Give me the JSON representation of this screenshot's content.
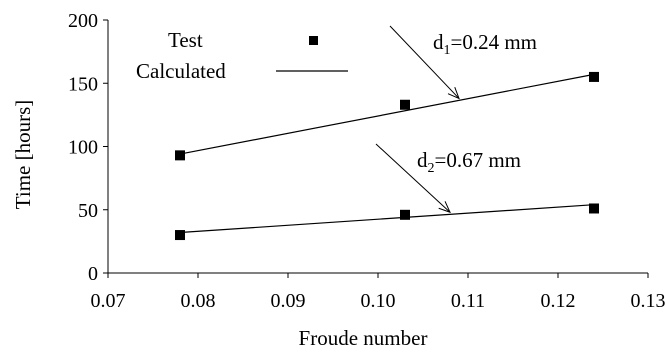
{
  "chart_data": {
    "type": "scatter",
    "title": "",
    "xlabel": "Froude number",
    "ylabel": "Time [hours]",
    "xlim": [
      0.07,
      0.13
    ],
    "ylim": [
      0,
      200
    ],
    "xticks": [
      "0.07",
      "0.08",
      "0.09",
      "0.10",
      "0.11",
      "0.12",
      "0.13"
    ],
    "yticks": [
      "0",
      "50",
      "100",
      "150",
      "200"
    ],
    "grid": false,
    "legend": {
      "placement": "top-left",
      "test_label": "Test",
      "calculated_label": "Calculated"
    },
    "series": [
      {
        "group": "d1",
        "test": [
          {
            "x": 0.078,
            "y": 93
          },
          {
            "x": 0.103,
            "y": 133
          },
          {
            "x": 0.124,
            "y": 155
          }
        ],
        "calculated": {
          "x": [
            0.078,
            0.124
          ],
          "y": [
            94,
            157
          ]
        }
      },
      {
        "group": "d2",
        "test": [
          {
            "x": 0.078,
            "y": 30
          },
          {
            "x": 0.103,
            "y": 46
          },
          {
            "x": 0.124,
            "y": 51
          }
        ],
        "calculated": {
          "x": [
            0.078,
            0.124
          ],
          "y": [
            32,
            54
          ]
        }
      }
    ],
    "annotations": [
      {
        "prefix": "d",
        "sub": "1",
        "suffix": "=0.24 mm",
        "arrow_to": {
          "x": 0.109,
          "y": 138
        }
      },
      {
        "prefix": "d",
        "sub": "2",
        "suffix": "=0.67 mm",
        "arrow_to": {
          "x": 0.108,
          "y": 48
        }
      }
    ]
  }
}
